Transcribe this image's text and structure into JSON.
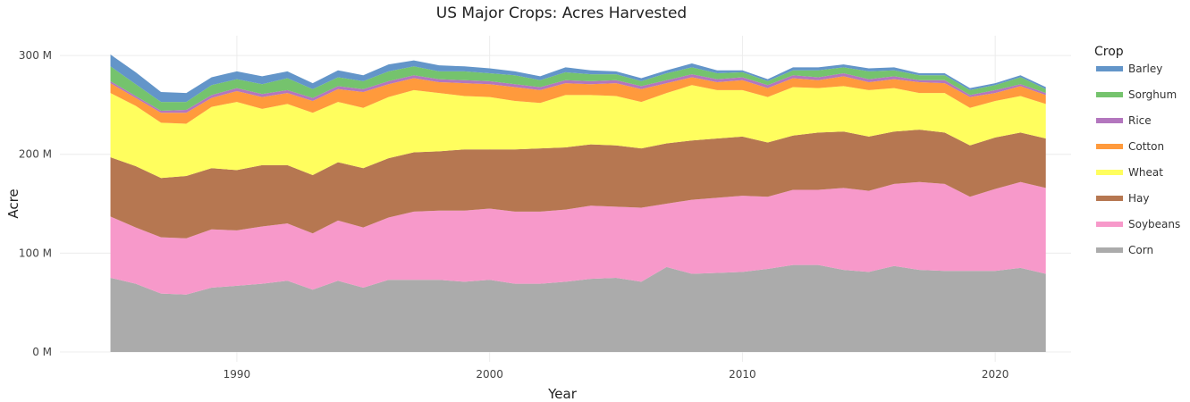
{
  "chart_data": {
    "type": "area",
    "title": "US Major Crops: Acres Harvested",
    "xlabel": "Year",
    "ylabel": "Acre",
    "xlim": [
      1983,
      2023
    ],
    "ylim": [
      -10000000,
      320000000
    ],
    "x_ticks": [
      1990,
      2000,
      2010,
      2020
    ],
    "y_ticks": [
      0,
      100000000,
      200000000,
      300000000
    ],
    "y_tick_labels": [
      "0 M",
      "100 M",
      "200 M",
      "300 M"
    ],
    "grid": true,
    "stacked": true,
    "legend": {
      "title": "Crop",
      "position": "right"
    },
    "x": [
      1985,
      1986,
      1987,
      1988,
      1989,
      1990,
      1991,
      1992,
      1993,
      1994,
      1995,
      1996,
      1997,
      1998,
      1999,
      2000,
      2001,
      2002,
      2003,
      2004,
      2005,
      2006,
      2007,
      2008,
      2009,
      2010,
      2011,
      2012,
      2013,
      2014,
      2015,
      2016,
      2017,
      2018,
      2019,
      2020,
      2021,
      2022
    ],
    "series": [
      {
        "name": "Corn",
        "color": "#ababab",
        "values": [
          75,
          69,
          59,
          58,
          65,
          67,
          69,
          72,
          63,
          72,
          65,
          73,
          73,
          73,
          71,
          73,
          69,
          69,
          71,
          74,
          75,
          71,
          86,
          79,
          80,
          81,
          84,
          88,
          88,
          83,
          81,
          87,
          83,
          82,
          82,
          82,
          85,
          79
        ]
      },
      {
        "name": "Soybeans",
        "color": "#f799ca",
        "values": [
          62,
          57,
          57,
          57,
          59,
          56,
          58,
          58,
          57,
          61,
          61,
          63,
          69,
          70,
          72,
          72,
          73,
          73,
          73,
          74,
          72,
          75,
          64,
          75,
          76,
          77,
          73,
          76,
          76,
          83,
          82,
          83,
          89,
          88,
          75,
          83,
          87,
          87
        ]
      },
      {
        "name": "Hay",
        "color": "#b67751",
        "values": [
          60,
          62,
          60,
          63,
          62,
          61,
          62,
          59,
          59,
          59,
          60,
          60,
          60,
          60,
          62,
          60,
          63,
          64,
          63,
          62,
          62,
          60,
          61,
          60,
          60,
          60,
          55,
          55,
          58,
          57,
          55,
          53,
          53,
          52,
          52,
          52,
          50,
          50
        ]
      },
      {
        "name": "Wheat",
        "color": "#fffe5e",
        "values": [
          65,
          61,
          56,
          53,
          62,
          69,
          57,
          62,
          63,
          61,
          61,
          62,
          63,
          59,
          54,
          53,
          49,
          46,
          53,
          50,
          50,
          47,
          51,
          56,
          49,
          47,
          46,
          49,
          45,
          46,
          47,
          44,
          37,
          40,
          38,
          37,
          37,
          35
        ]
      },
      {
        "name": "Cotton",
        "color": "#ff9a3c",
        "values": [
          10,
          8,
          10,
          11,
          9,
          11,
          12,
          11,
          12,
          13,
          16,
          13,
          12,
          11,
          13,
          13,
          14,
          13,
          12,
          11,
          13,
          13,
          10,
          8,
          8,
          10,
          9,
          9,
          8,
          10,
          8,
          9,
          11,
          10,
          11,
          8,
          10,
          9
        ]
      },
      {
        "name": "Rice",
        "color": "#b376be",
        "values": [
          2,
          2,
          2,
          3,
          3,
          3,
          3,
          3,
          3,
          3,
          3,
          3,
          3,
          3,
          3,
          3,
          3,
          3,
          3,
          3,
          3,
          3,
          3,
          3,
          3,
          3,
          3,
          3,
          3,
          3,
          3,
          3,
          2,
          3,
          2,
          3,
          2,
          2
        ]
      },
      {
        "name": "Sorghum",
        "color": "#75c36d",
        "values": [
          15,
          12,
          9,
          8,
          10,
          9,
          10,
          12,
          9,
          9,
          8,
          10,
          9,
          8,
          9,
          8,
          9,
          7,
          8,
          7,
          6,
          5,
          7,
          7,
          6,
          5,
          4,
          5,
          7,
          6,
          8,
          6,
          5,
          5,
          5,
          5,
          7,
          4
        ]
      },
      {
        "name": "Barley",
        "color": "#6395c9",
        "values": [
          12,
          12,
          10,
          9,
          8,
          8,
          8,
          7,
          6,
          7,
          6,
          7,
          6,
          6,
          5,
          5,
          4,
          4,
          5,
          4,
          3,
          3,
          3,
          4,
          3,
          2,
          2,
          3,
          3,
          3,
          3,
          3,
          2,
          2,
          2,
          2,
          2,
          2
        ]
      }
    ],
    "values_unit_multiplier": 1000000
  }
}
